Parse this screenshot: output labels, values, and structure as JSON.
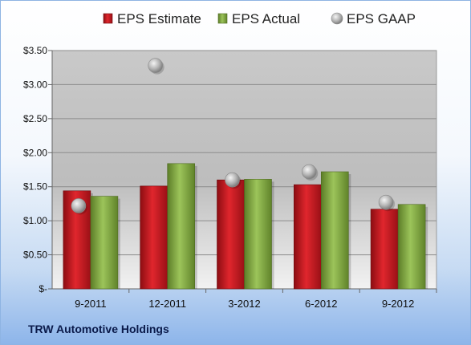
{
  "company": "TRW Automotive Holdings",
  "colors": {
    "estimate": "#c0141b",
    "actual": "#7aa33a",
    "gaap": "#b7b7b7"
  },
  "chart_data": {
    "type": "bar",
    "categories": [
      "9-2011",
      "12-2011",
      "3-2012",
      "6-2012",
      "9-2012"
    ],
    "series": [
      {
        "name": "EPS Estimate",
        "kind": "bar",
        "values": [
          1.44,
          1.51,
          1.6,
          1.53,
          1.17
        ]
      },
      {
        "name": "EPS Actual",
        "kind": "bar",
        "values": [
          1.36,
          1.84,
          1.61,
          1.72,
          1.24
        ]
      },
      {
        "name": "EPS GAAP",
        "kind": "scatter",
        "values": [
          1.22,
          3.28,
          1.6,
          1.72,
          1.27
        ]
      }
    ],
    "ylim": [
      0,
      3.5
    ],
    "yticks": [
      {
        "value": 3.5,
        "label": "$3.50"
      },
      {
        "value": 3.0,
        "label": "$3.00"
      },
      {
        "value": 2.5,
        "label": "$2.50"
      },
      {
        "value": 2.0,
        "label": "$2.00"
      },
      {
        "value": 1.5,
        "label": "$1.50"
      },
      {
        "value": 1.0,
        "label": "$1.00"
      },
      {
        "value": 0.5,
        "label": "$0.50"
      },
      {
        "value": 0,
        "label": "$-"
      }
    ],
    "grid": true,
    "legend_position": "top"
  }
}
